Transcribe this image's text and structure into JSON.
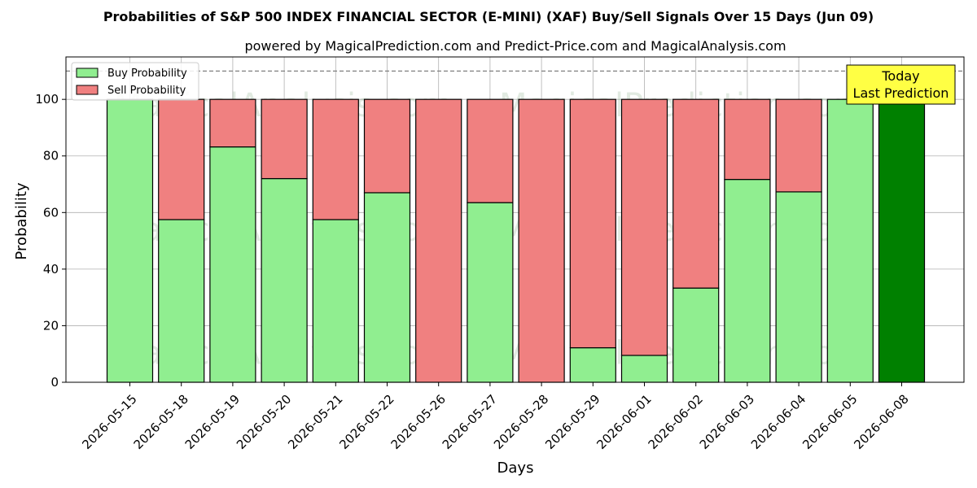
{
  "chart_data": {
    "type": "bar",
    "stacked": true,
    "title": "Probabilities of S&P 500 INDEX FINANCIAL SECTOR (E-MINI) (XAF) Buy/Sell Signals Over 15 Days (Jun 09)",
    "subtitle": "powered by MagicalPrediction.com and Predict-Price.com and MagicalAnalysis.com",
    "xlabel": "Days",
    "ylabel": "Probability",
    "ylim": [
      0,
      115
    ],
    "yticks": [
      0,
      20,
      40,
      60,
      80,
      100
    ],
    "reference_line": 110,
    "grid": true,
    "legend_position": "top-left",
    "categories": [
      "2026-05-15",
      "2026-05-18",
      "2026-05-19",
      "2026-05-20",
      "2026-05-21",
      "2026-05-22",
      "2026-05-26",
      "2026-05-27",
      "2026-05-28",
      "2026-05-29",
      "2026-06-01",
      "2026-06-02",
      "2026-06-03",
      "2026-06-04",
      "2026-06-05",
      "2026-06-08"
    ],
    "series": [
      {
        "name": "Buy Probability",
        "color": "#90ee90",
        "values": [
          100,
          57.5,
          83.2,
          72,
          57.5,
          67,
          0,
          63.5,
          0,
          12.2,
          9.5,
          33.3,
          71.7,
          67.3,
          100,
          100
        ]
      },
      {
        "name": "Sell Probability",
        "color": "#f08080",
        "values": [
          0,
          42.5,
          16.8,
          28,
          42.5,
          33,
          100,
          36.5,
          100,
          87.8,
          90.5,
          66.7,
          28.3,
          32.7,
          0,
          0
        ]
      }
    ],
    "highlight": {
      "index": 15,
      "color": "#008000"
    },
    "annotation": {
      "lines": [
        "Today",
        "Last Prediction"
      ],
      "background": "#ffff44"
    },
    "watermarks": [
      "MagicalAnalysis.com",
      "MagicalPrediction.com"
    ]
  }
}
